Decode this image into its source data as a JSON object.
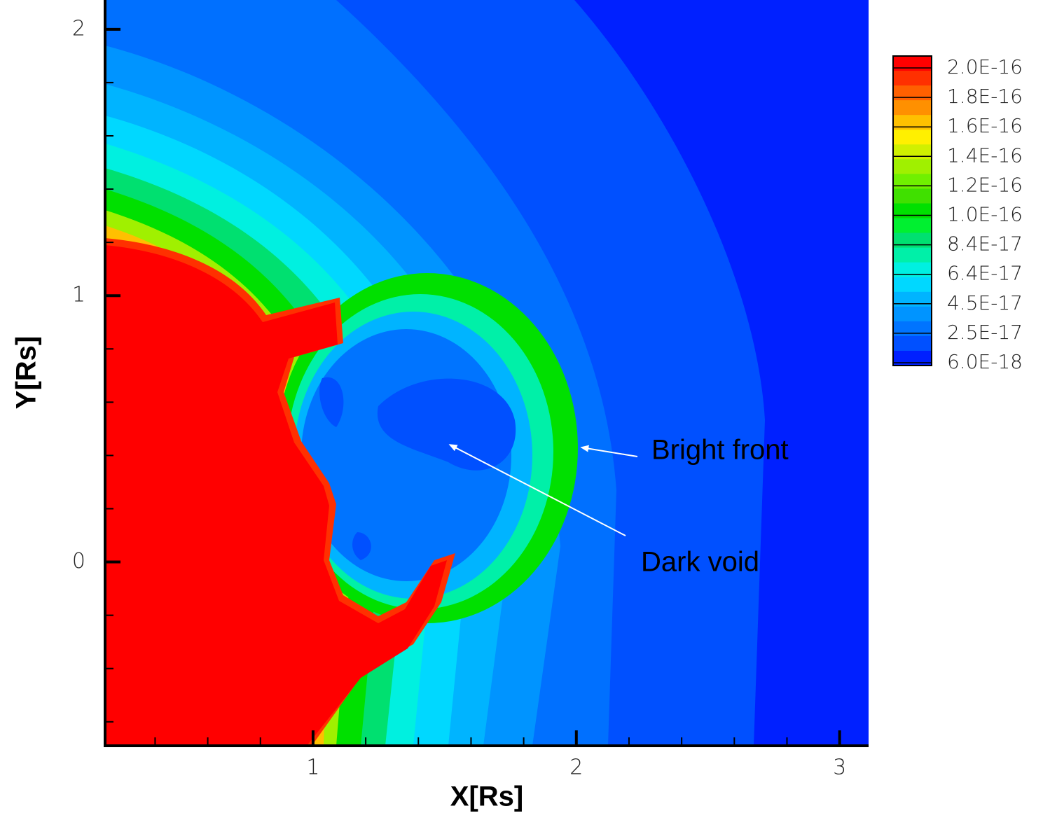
{
  "chart_data": {
    "type": "contour",
    "x_label": "X[Rs]",
    "y_label": "Y[Rs]",
    "xlim": [
      0.21,
      3.11
    ],
    "ylim": [
      -0.69,
      2.11
    ],
    "xticks": [
      1,
      2,
      3
    ],
    "yticks": [
      0,
      1,
      2
    ],
    "xminorticks": [
      0.4,
      0.6,
      0.8,
      1.2,
      1.4,
      1.6,
      1.8,
      2.2,
      2.4,
      2.6,
      2.8,
      3.0
    ],
    "yminorticks": [
      -0.6,
      -0.4,
      -0.2,
      0.2,
      0.4,
      0.6,
      0.8,
      1.2,
      1.4,
      1.6,
      1.8
    ],
    "colorbar": {
      "levels": [
        {
          "value": 2e-16,
          "label": "2.0E-16"
        },
        {
          "value": 1.8e-16,
          "label": "1.8E-16"
        },
        {
          "value": 1.6e-16,
          "label": "1.6E-16"
        },
        {
          "value": 1.4e-16,
          "label": "1.4E-16"
        },
        {
          "value": 1.2e-16,
          "label": "1.2E-16"
        },
        {
          "value": 1e-16,
          "label": "1.0E-16"
        },
        {
          "value": 8.4e-17,
          "label": "8.4E-17"
        },
        {
          "value": 6.4e-17,
          "label": "6.4E-17"
        },
        {
          "value": 4.5e-17,
          "label": "4.5E-17"
        },
        {
          "value": 2.5e-17,
          "label": "2.5E-17"
        },
        {
          "value": 6e-18,
          "label": "6.0E-18"
        }
      ],
      "colors": [
        "#ff0000",
        "#ff3000",
        "#ff6000",
        "#ff9000",
        "#ffc000",
        "#fff000",
        "#d0f000",
        "#a0f000",
        "#70f000",
        "#40e000",
        "#00e000",
        "#00f030",
        "#00e070",
        "#00f0a8",
        "#00f0e0",
        "#00d8ff",
        "#00b4ff",
        "#0094ff",
        "#0074ff",
        "#0050ff",
        "#0020ff"
      ]
    },
    "annotations": [
      {
        "text": "Bright front",
        "x": 2.02,
        "y": 0.43
      },
      {
        "text": "Dark void",
        "x": 1.52,
        "y": 0.44
      }
    ]
  }
}
